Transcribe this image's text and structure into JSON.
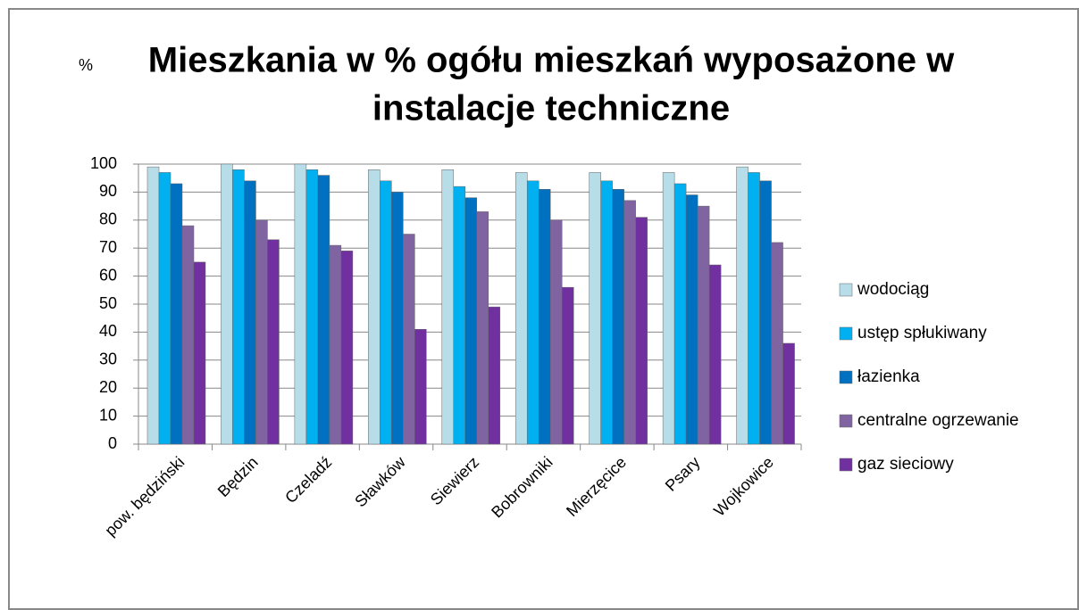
{
  "chart_data": {
    "type": "bar",
    "title": [
      "Mieszkania w %  ogółu mieszkań wyposażone w",
      "instalacje techniczne"
    ],
    "y_label": "%",
    "categories": [
      "pow. będziński",
      "Będzin",
      "Czeladź",
      "Sławków",
      "Siewierz",
      "Bobrowniki",
      "Mierzęcice",
      "Psary",
      "Wojkowice"
    ],
    "series": [
      {
        "name": "wodociąg",
        "color": "#b7dde8",
        "values": [
          99,
          100,
          100,
          98,
          98,
          97,
          97,
          97,
          99
        ]
      },
      {
        "name": "ustęp spłukiwany",
        "color": "#00b0f0",
        "values": [
          97,
          98,
          98,
          94,
          92,
          94,
          94,
          93,
          97
        ]
      },
      {
        "name": "łazienka",
        "color": "#0070c0",
        "values": [
          93,
          94,
          96,
          90,
          88,
          91,
          91,
          89,
          94
        ]
      },
      {
        "name": "centralne ogrzewanie",
        "color": "#8064a2",
        "values": [
          78,
          80,
          71,
          75,
          83,
          80,
          87,
          85,
          72
        ]
      },
      {
        "name": "gaz sieciowy",
        "color": "#7030a0",
        "values": [
          65,
          73,
          69,
          41,
          49,
          56,
          81,
          64,
          36
        ]
      }
    ],
    "ylim": [
      0,
      100
    ],
    "yticks": [
      0,
      10,
      20,
      30,
      40,
      50,
      60,
      70,
      80,
      90,
      100
    ],
    "grid": true,
    "legend": "right"
  }
}
